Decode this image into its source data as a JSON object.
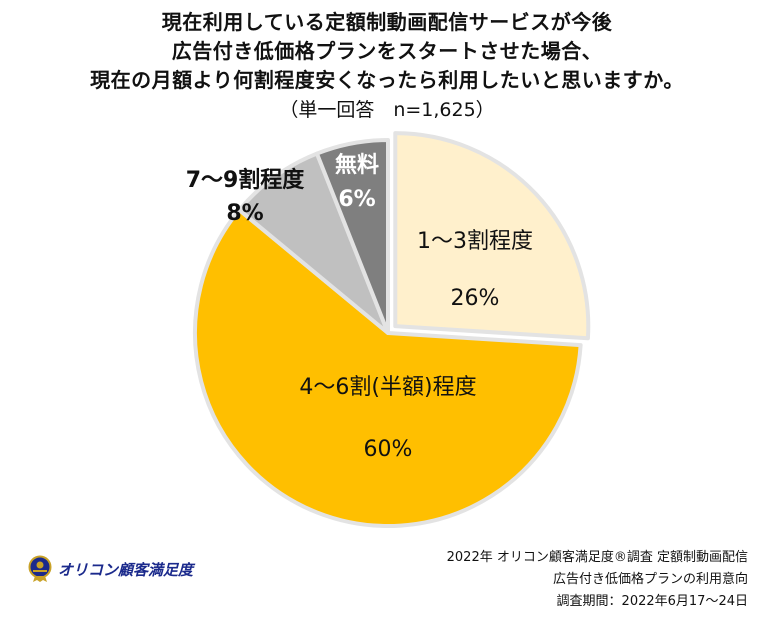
{
  "title_lines": [
    "現在利用している定額制動画配信サービスが今後",
    "広告付き低価格プランをスタートさせた場合、",
    "現在の月額より何割程度安くなったら利用したいと思いますか。"
  ],
  "subtitle": "（単一回答　n=1,625）",
  "chart_data": {
    "type": "pie",
    "slices": [
      {
        "label": "1～3割程度",
        "value": 26,
        "value_label": "26%",
        "color": "#fff0cc"
      },
      {
        "label": "4～6割(半額)程度",
        "value": 60,
        "value_label": "60%",
        "color": "#ffbf00"
      },
      {
        "label": "7～9割程度",
        "value": 8,
        "value_label": "8%",
        "color": "#c0c0c0"
      },
      {
        "label": "無料",
        "value": 6,
        "value_label": "6%",
        "color": "#7f7f7f"
      }
    ],
    "start_angle": "12 o'clock, clockwise",
    "legend": "none"
  },
  "logo": {
    "name": "オリコン顧客満足度",
    "icon": "medal-icon"
  },
  "source_lines": [
    "2022年 オリコン顧客満足度®調査 定額制動画配信",
    "広告付き低価格プランの利用意向",
    "調査期間：2022年6月17～24日"
  ]
}
